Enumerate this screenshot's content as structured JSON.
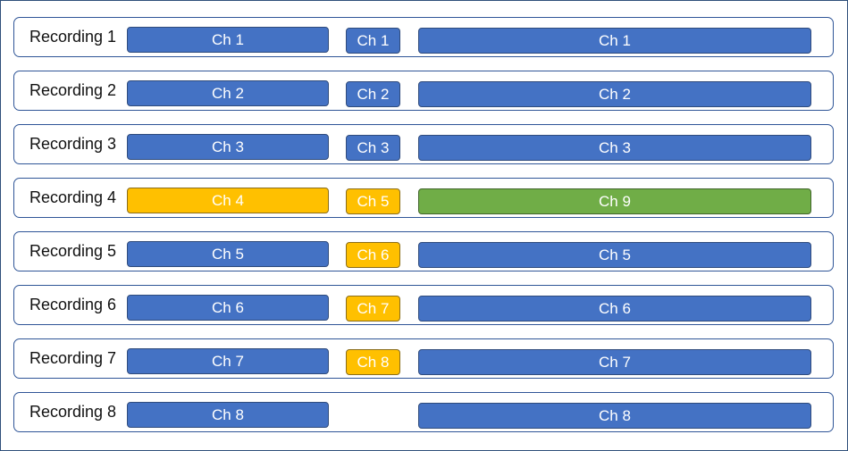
{
  "colors": {
    "blue": "#4472c4",
    "yellow": "#ffc000",
    "green": "#70ad47"
  },
  "rows": [
    {
      "label": "Recording 1",
      "a": {
        "text": "Ch 1",
        "color": "blue"
      },
      "b": {
        "text": "Ch 1",
        "color": "blue"
      },
      "c": {
        "text": "Ch 1",
        "color": "blue"
      }
    },
    {
      "label": "Recording 2",
      "a": {
        "text": "Ch 2",
        "color": "blue"
      },
      "b": {
        "text": "Ch 2",
        "color": "blue"
      },
      "c": {
        "text": "Ch 2",
        "color": "blue"
      }
    },
    {
      "label": "Recording 3",
      "a": {
        "text": "Ch 3",
        "color": "blue"
      },
      "b": {
        "text": "Ch 3",
        "color": "blue"
      },
      "c": {
        "text": "Ch 3",
        "color": "blue"
      }
    },
    {
      "label": "Recording 4",
      "a": {
        "text": "Ch 4",
        "color": "yellow"
      },
      "b": {
        "text": "Ch 5",
        "color": "yellow"
      },
      "c": {
        "text": "Ch 9",
        "color": "green"
      }
    },
    {
      "label": "Recording 5",
      "a": {
        "text": "Ch 5",
        "color": "blue"
      },
      "b": {
        "text": "Ch 6",
        "color": "yellow"
      },
      "c": {
        "text": "Ch 5",
        "color": "blue"
      }
    },
    {
      "label": "Recording 6",
      "a": {
        "text": "Ch 6",
        "color": "blue"
      },
      "b": {
        "text": "Ch 7",
        "color": "yellow"
      },
      "c": {
        "text": "Ch 6",
        "color": "blue"
      }
    },
    {
      "label": "Recording 7",
      "a": {
        "text": "Ch 7",
        "color": "blue"
      },
      "b": {
        "text": "Ch 8",
        "color": "yellow"
      },
      "c": {
        "text": "Ch 7",
        "color": "blue"
      }
    },
    {
      "label": "Recording 8",
      "a": {
        "text": "Ch 8",
        "color": "blue"
      },
      "c": {
        "text": "Ch 8",
        "color": "blue"
      }
    }
  ]
}
